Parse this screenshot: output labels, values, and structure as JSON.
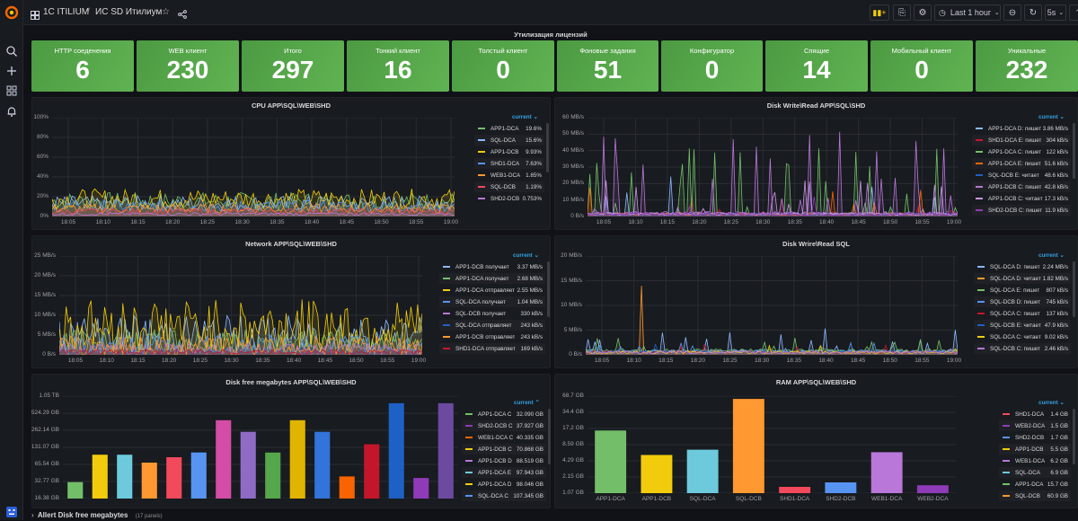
{
  "topbar": {
    "breadcrumb_folder": "1C ITILIUM",
    "breadcrumb_sep": "/",
    "breadcrumb_dashboard": "ИС SD Итилиум",
    "time_range": "Last 1 hour",
    "refresh": "5s"
  },
  "row_title": "Утилизация лицензий",
  "stats": [
    {
      "label": "HTTP соеденения",
      "value": "6"
    },
    {
      "label": "WEB клиент",
      "value": "230"
    },
    {
      "label": "Итого",
      "value": "297"
    },
    {
      "label": "Тонкий клиент",
      "value": "16"
    },
    {
      "label": "Толстый клиент",
      "value": "0"
    },
    {
      "label": "Фоновые задания",
      "value": "51"
    },
    {
      "label": "Конфигуратор",
      "value": "0"
    },
    {
      "label": "Спящие",
      "value": "14"
    },
    {
      "label": "Мобильный клиент",
      "value": "0"
    },
    {
      "label": "Уникальные",
      "value": "232"
    }
  ],
  "panels": {
    "cpu": {
      "title": "CPU APP\\SQL\\WEB\\SHD",
      "legend_header": "current ⌄",
      "y_ticks": [
        "100%",
        "80%",
        "60%",
        "40%",
        "20%",
        "0%"
      ],
      "x_ticks": [
        "18:05",
        "18:10",
        "18:15",
        "18:20",
        "18:25",
        "18:30",
        "18:35",
        "18:40",
        "18:45",
        "18:50",
        "18:55",
        "19:00"
      ],
      "legend": [
        {
          "name": "APP1-DCA",
          "value": "19.6%",
          "color": "#73bf69"
        },
        {
          "name": "SQL-DCA",
          "value": "15.6%",
          "color": "#8ab8ff"
        },
        {
          "name": "APP1-DCB",
          "value": "9.93%",
          "color": "#f2cc0c"
        },
        {
          "name": "SHD1-DCA",
          "value": "7.63%",
          "color": "#5794f2"
        },
        {
          "name": "WEB1-DCA",
          "value": "1.85%",
          "color": "#ff9830"
        },
        {
          "name": "SQL-DCB",
          "value": "1.19%",
          "color": "#f2495c"
        },
        {
          "name": "SHD2-DCB",
          "value": "0.753%",
          "color": "#b877d9"
        }
      ]
    },
    "disk_app": {
      "title": "Disk Write\\Read APP\\SQL\\SHD",
      "legend_header": "current ⌄",
      "y_ticks": [
        "60 MB/s",
        "50 MB/s",
        "40 MB/s",
        "30 MB/s",
        "20 MB/s",
        "10 MB/s",
        "0 B/s"
      ],
      "x_ticks": [
        "18:05",
        "18:10",
        "18:15",
        "18:20",
        "18:25",
        "18:30",
        "18:35",
        "18:40",
        "18:45",
        "18:50",
        "18:55",
        "19:00"
      ],
      "legend": [
        {
          "name": "APP1-DCA D: пишет",
          "value": "3.86 MB/s",
          "color": "#8ab8ff"
        },
        {
          "name": "SHD1-DCA E: пишет",
          "value": "304 kB/s",
          "color": "#c4162a"
        },
        {
          "name": "APP1-DCA C: пишет",
          "value": "122 kB/s",
          "color": "#73bf69"
        },
        {
          "name": "APP1-DCA E: пишет",
          "value": "51.6 kB/s",
          "color": "#fa6400"
        },
        {
          "name": "SQL-DCB E: читает",
          "value": "48.6 kB/s",
          "color": "#1f60c4"
        },
        {
          "name": "APP1-DCB C: пишет",
          "value": "42.8 kB/s",
          "color": "#b877d9"
        },
        {
          "name": "APP1-DCB C: читает",
          "value": "17.3 kB/s",
          "color": "#ca95e5"
        },
        {
          "name": "SHD2-DCB C: пишет",
          "value": "11.9 kB/s",
          "color": "#8f3bb8"
        }
      ]
    },
    "network": {
      "title": "Network APP\\SQL\\WEB\\SHD",
      "legend_header": "current ⌄",
      "y_ticks": [
        "25 MB/s",
        "20 MB/s",
        "15 MB/s",
        "10 MB/s",
        "5 MB/s",
        "0 B/s"
      ],
      "x_ticks": [
        "18:05",
        "18:10",
        "18:15",
        "18:20",
        "18:25",
        "18:30",
        "18:35",
        "18:40",
        "18:45",
        "18:50",
        "18:55",
        "19:00"
      ],
      "legend": [
        {
          "name": "APP1-DCB получает",
          "value": "3.37 MB/s",
          "color": "#8ab8ff"
        },
        {
          "name": "APP1-DCA получает",
          "value": "2.68 MB/s",
          "color": "#73bf69"
        },
        {
          "name": "APP1-DCA отправляет",
          "value": "2.55 MB/s",
          "color": "#f2cc0c"
        },
        {
          "name": "SQL-DCA получает",
          "value": "1.04 MB/s",
          "color": "#5794f2"
        },
        {
          "name": "SQL-DCB получает",
          "value": "330 kB/s",
          "color": "#b877d9"
        },
        {
          "name": "SQL-DCA отправляет",
          "value": "243 kB/s",
          "color": "#1f60c4"
        },
        {
          "name": "APP1-DCB отправляет",
          "value": "243 kB/s",
          "color": "#ff9830"
        },
        {
          "name": "SHD1-DCA отправляет",
          "value": "169 kB/s",
          "color": "#c4162a"
        }
      ]
    },
    "disk_sql": {
      "title": "Disk Wrire\\Read SQL",
      "legend_header": "current ⌄",
      "y_ticks": [
        "20 MB/s",
        "15 MB/s",
        "10 MB/s",
        "5 MB/s",
        "0 B/s"
      ],
      "x_ticks": [
        "18:05",
        "18:10",
        "18:15",
        "18:20",
        "18:25",
        "18:30",
        "18:35",
        "18:40",
        "18:45",
        "18:50",
        "18:55",
        "19:00"
      ],
      "legend": [
        {
          "name": "SQL-DCA D: пишет",
          "value": "2.24 MB/s",
          "color": "#8ab8ff"
        },
        {
          "name": "SQL-DCA D: читает",
          "value": "1.82 MB/s",
          "color": "#ff9830"
        },
        {
          "name": "SQL-DCA E: пишет",
          "value": "807 kB/s",
          "color": "#73bf69"
        },
        {
          "name": "SQL-DCB D: пишет",
          "value": "745 kB/s",
          "color": "#5794f2"
        },
        {
          "name": "SQL-DCA C: пишет",
          "value": "137 kB/s",
          "color": "#c4162a"
        },
        {
          "name": "SQL-DCB E: читает",
          "value": "47.9 kB/s",
          "color": "#1f60c4"
        },
        {
          "name": "SQL-DCA C: читает",
          "value": "9.02 kB/s",
          "color": "#f2cc0c"
        },
        {
          "name": "SQL-DCB C: пишет",
          "value": "2.46 kB/s",
          "color": "#b877d9"
        }
      ]
    },
    "disk_free": {
      "title": "Disk free megabytes APP\\SQL\\WEB\\SHD",
      "legend_header": "current ⌃",
      "y_ticks": [
        "1.05 TB",
        "524.29 GB",
        "262.14 GB",
        "131.07 GB",
        "65.54 GB",
        "32.77 GB",
        "16.38 GB"
      ],
      "legend": [
        {
          "name": "APP1-DCA C",
          "value": "32.090 GB",
          "color": "#73bf69"
        },
        {
          "name": "SHD2-DCB C",
          "value": "37.927 GB",
          "color": "#8f3bb8"
        },
        {
          "name": "WEB1-DCA C",
          "value": "40.335 GB",
          "color": "#fa6400"
        },
        {
          "name": "APP1-DCB C",
          "value": "70.868 GB",
          "color": "#f2cc0c"
        },
        {
          "name": "APP1-DCB D",
          "value": "88.519 GB",
          "color": "#b877d9"
        },
        {
          "name": "APP1-DCA E",
          "value": "97.943 GB",
          "color": "#6ccadc"
        },
        {
          "name": "APP1-DCA D",
          "value": "98.046 GB",
          "color": "#f2cc0c"
        },
        {
          "name": "SQL-DCA C",
          "value": "107.345 GB",
          "color": "#5794f2"
        }
      ]
    },
    "ram": {
      "title": "RAM APP\\SQL\\WEB\\SHD",
      "legend_header": "current ⌄",
      "y_ticks": [
        "68.7 GB",
        "34.4 GB",
        "17.2 GB",
        "8.59 GB",
        "4.29 GB",
        "2.15 GB",
        "1.07 GB"
      ],
      "legend": [
        {
          "name": "SHD1-DCA",
          "value": "1.4 GB",
          "color": "#f2495c"
        },
        {
          "name": "WEB2-DCA",
          "value": "1.5 GB",
          "color": "#8f3bb8"
        },
        {
          "name": "SHD2-DCB",
          "value": "1.7 GB",
          "color": "#5794f2"
        },
        {
          "name": "APP1-DCB",
          "value": "5.5 GB",
          "color": "#f2cc0c"
        },
        {
          "name": "WEB1-DCA",
          "value": "6.2 GB",
          "color": "#b877d9"
        },
        {
          "name": "SQL-DCA",
          "value": "6.9 GB",
          "color": "#6ccadc"
        },
        {
          "name": "APP1-DCA",
          "value": "15.7 GB",
          "color": "#73bf69"
        },
        {
          "name": "SQL-DCB",
          "value": "60.9 GB",
          "color": "#ff9830"
        }
      ]
    }
  },
  "bottom_row": {
    "title": "Allert Disk free megabytes",
    "count": "(17 panels)"
  },
  "chart_data": [
    {
      "type": "bar",
      "title": "Disk free megabytes APP\\SQL\\WEB\\SHD",
      "yscale": "log",
      "values_gb": [
        32.09,
        98.05,
        97.94,
        70.87,
        88.52,
        107.35,
        400,
        250,
        107,
        400,
        250,
        40.3,
        150,
        800,
        37.9,
        800
      ],
      "colors": [
        "#73bf69",
        "#f2cc0c",
        "#6ccadc",
        "#ff9830",
        "#f2495c",
        "#5794f2",
        "#d44ca6",
        "#8f6bc4",
        "#56a64b",
        "#e0b400",
        "#3274d9",
        "#fa6400",
        "#c4162a",
        "#1f60c4",
        "#8f3bb8",
        "#6c4aa0"
      ]
    },
    {
      "type": "bar",
      "title": "RAM APP\\SQL\\WEB\\SHD",
      "yscale": "log",
      "categories": [
        "APP1-DCA",
        "APP1-DCB",
        "SQL-DCA",
        "SQL-DCB",
        "SHD1-DCA",
        "SHD2-DCB",
        "WEB1-DCA",
        "WEB2-DCA"
      ],
      "values": [
        15.7,
        5.5,
        6.9,
        60.9,
        1.4,
        1.7,
        6.2,
        1.5
      ],
      "colors": [
        "#73bf69",
        "#f2cc0c",
        "#6ccadc",
        "#ff9830",
        "#f2495c",
        "#5794f2",
        "#b877d9",
        "#8f3bb8"
      ]
    }
  ]
}
